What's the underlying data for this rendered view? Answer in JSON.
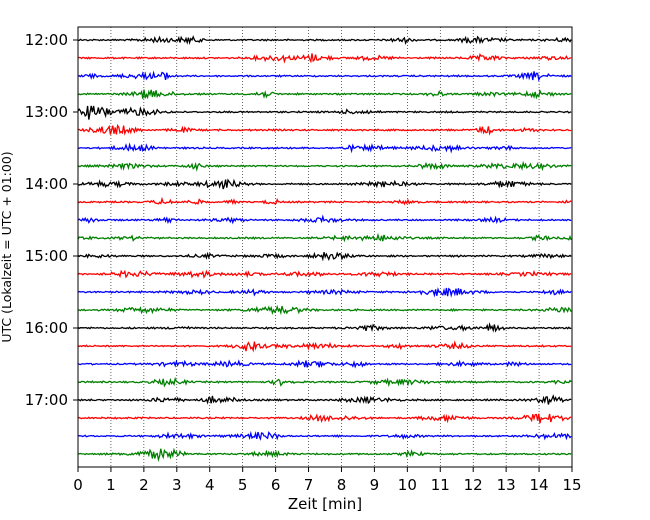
{
  "chart_data": {
    "type": "line",
    "title": "",
    "xlabel": "Zeit  [min]",
    "ylabel": "UTC (Lokalzeit = UTC + 01:00)",
    "xlim": [
      0,
      15
    ],
    "x_ticks": [
      "0",
      "1",
      "2",
      "3",
      "4",
      "5",
      "6",
      "7",
      "8",
      "9",
      "10",
      "11",
      "12",
      "13",
      "14",
      "15"
    ],
    "y_ticks": [
      "12:00",
      "13:00",
      "14:00",
      "15:00",
      "16:00",
      "17:00"
    ],
    "vertical_grid": true,
    "trace_interval_minutes": 15,
    "first_trace": "12:00",
    "last_trace": "17:45",
    "trace_colors": [
      "#000000",
      "#ff0000",
      "#0000ff",
      "#008000"
    ],
    "trace_count": 24
  }
}
